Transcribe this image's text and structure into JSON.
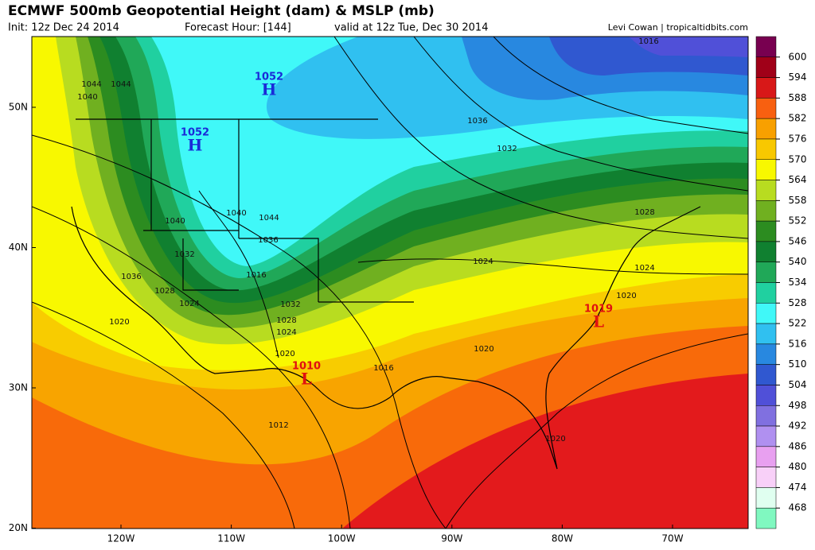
{
  "title": "ECMWF 500mb Geopotential Height (dam) & MSLP (mb)",
  "init": "Init: 12z Dec 24 2014",
  "forecast_hour": "Forecast Hour: [144]",
  "valid": "valid at 12z Tue, Dec 30 2014",
  "credit": "Levi Cowan | tropicaltidbits.com",
  "latitude_labels": [
    "50N",
    "40N",
    "30N",
    "20N"
  ],
  "longitude_labels": [
    "120W",
    "110W",
    "100W",
    "90W",
    "80W",
    "70W"
  ],
  "pressure_centers": [
    {
      "type": "H",
      "value": "1052"
    },
    {
      "type": "H",
      "value": "1052"
    },
    {
      "type": "L",
      "value": "1010"
    },
    {
      "type": "L",
      "value": "1019"
    }
  ],
  "isobar_labels": [
    "1016",
    "1044",
    "1044",
    "1040",
    "1036",
    "1032",
    "1028",
    "1024",
    "1020",
    "1024",
    "1040",
    "1040",
    "1044",
    "1036",
    "1032",
    "1016",
    "1028",
    "1024",
    "1032",
    "1028",
    "1024",
    "1020",
    "1016",
    "1020",
    "1036",
    "1020",
    "1012",
    "1020"
  ],
  "colorbar": {
    "levels": [
      600,
      594,
      588,
      582,
      576,
      570,
      564,
      558,
      552,
      546,
      540,
      534,
      528,
      522,
      516,
      510,
      504,
      498,
      492,
      486,
      480,
      474,
      468
    ],
    "colors": [
      "#780050",
      "#a00018",
      "#d81818",
      "#f86010",
      "#f8a000",
      "#f8c800",
      "#f8f800",
      "#b8dc20",
      "#70b020",
      "#2c8c20",
      "#108030",
      "#20a858",
      "#20d0a0",
      "#40f8f8",
      "#30c0f0",
      "#2888e0",
      "#3058d0",
      "#5050d8",
      "#8070e0",
      "#b090f0",
      "#e8a0f0",
      "#f8d0f8",
      "#e0fff0",
      "#80f8c0"
    ]
  }
}
